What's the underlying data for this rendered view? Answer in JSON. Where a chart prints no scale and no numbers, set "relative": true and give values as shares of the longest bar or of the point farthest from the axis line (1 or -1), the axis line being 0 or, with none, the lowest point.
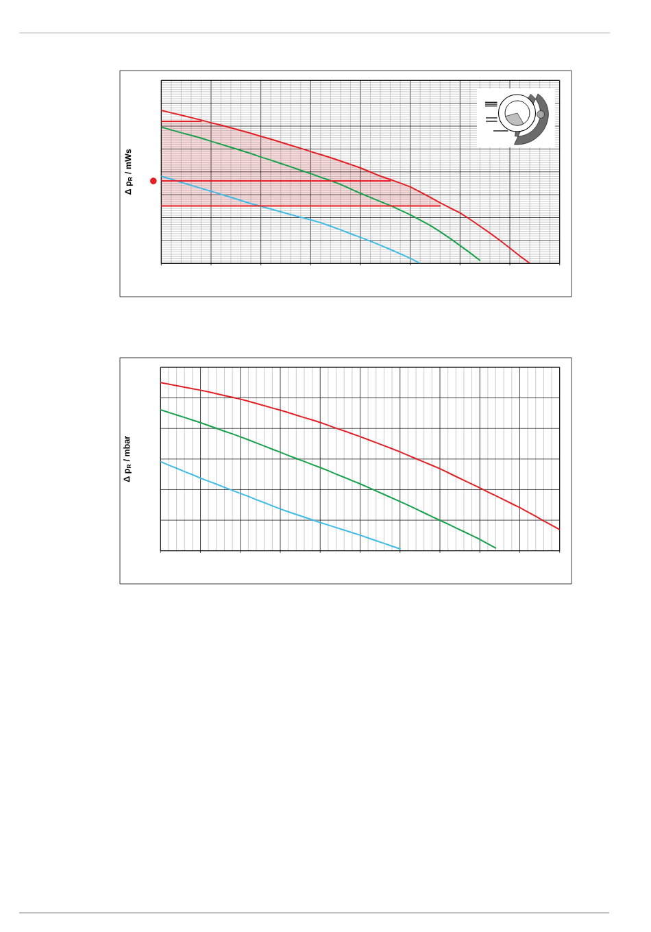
{
  "chart_data": [
    {
      "type": "line",
      "ylabel": "Δ p$_{R}$ / mWs",
      "relative": true,
      "grid": true,
      "categories": [
        null,
        null,
        null,
        null,
        null,
        null,
        null,
        null,
        null,
        null,
        null,
        null,
        null,
        null,
        null,
        null,
        null,
        null,
        null,
        null,
        null,
        null,
        null,
        null,
        null,
        null,
        null,
        null,
        null,
        null,
        null,
        null,
        null,
        null,
        null,
        null,
        null,
        null
      ],
      "series": [
        {
          "color": "#e31e24",
          "values": [
            1.0,
            0.984,
            0.969,
            0.953,
            0.937,
            0.919,
            0.904,
            0.886,
            0.868,
            0.85,
            0.83,
            0.812,
            0.792,
            0.772,
            0.752,
            0.731,
            0.711,
            0.691,
            0.669,
            0.647,
            0.624,
            0.597,
            0.57,
            0.548,
            0.525,
            0.5,
            0.467,
            0.432,
            0.396,
            0.362,
            0.33,
            0.288,
            0.243,
            0.198,
            0.15,
            0.1,
            0.048,
            0
          ]
        },
        {
          "color": "#16a04a",
          "values": [
            0.891,
            0.872,
            0.854,
            0.837,
            0.819,
            0.798,
            0.778,
            0.758,
            0.738,
            0.718,
            0.695,
            0.675,
            0.653,
            0.631,
            0.608,
            0.587,
            0.563,
            0.541,
            0.516,
            0.487,
            0.458,
            0.431,
            0.404,
            0.378,
            0.348,
            0.318,
            0.283,
            0.248,
            0.207,
            0.163,
            0.116,
            0.069,
            0.019,
            null,
            null,
            null,
            null,
            null
          ]
        },
        {
          "color": "#3dbbe6",
          "values": [
            0.569,
            0.55,
            0.53,
            0.51,
            0.49,
            0.472,
            0.451,
            0.431,
            0.411,
            0.391,
            0.373,
            0.355,
            0.337,
            0.319,
            0.301,
            0.285,
            0.266,
            0.243,
            0.219,
            0.194,
            0.17,
            0.145,
            0.118,
            0.091,
            0.062,
            0.033,
            0,
            null,
            null,
            null,
            null,
            null,
            null,
            null,
            null,
            null,
            null,
            null
          ]
        },
        {
          "type": "line",
          "color": "#e31e24",
          "values": [
            0.928,
            0.928,
            0.928,
            0.928,
            0.928,
            null,
            null,
            null,
            null,
            null,
            null,
            null,
            null,
            null,
            null,
            null,
            null,
            null,
            null,
            null,
            null,
            null,
            null,
            null,
            null,
            null,
            null,
            null,
            null,
            null,
            null,
            null,
            null,
            null,
            null,
            null,
            null,
            null
          ]
        },
        {
          "type": "line",
          "color": "#e31e24",
          "values": [
            0.539,
            0.539,
            0.539,
            0.539,
            0.539,
            0.539,
            0.539,
            0.539,
            0.539,
            0.539,
            0.539,
            0.539,
            0.539,
            0.539,
            0.539,
            0.539,
            0.539,
            0.539,
            0.539,
            0.539,
            0.539,
            0.539,
            0.539,
            0.539,
            null,
            null,
            null,
            null,
            null,
            null,
            null,
            null,
            null,
            null,
            null,
            null,
            null,
            null
          ]
        },
        {
          "type": "line",
          "color": "#e31e24",
          "values": [
            0.375,
            0.375,
            0.375,
            0.375,
            0.375,
            0.375,
            0.375,
            0.375,
            0.375,
            0.375,
            0.375,
            0.375,
            0.375,
            0.375,
            0.375,
            0.375,
            0.375,
            0.375,
            0.375,
            0.375,
            0.375,
            0.375,
            0.375,
            0.375,
            0.375,
            0.375,
            0.375,
            0.375,
            0.375,
            null,
            null,
            null,
            null,
            null,
            null,
            null,
            null,
            null
          ]
        }
      ]
    },
    {
      "type": "line",
      "ylabel": "Δ p$_{R}$ / mbar",
      "relative": true,
      "grid": true,
      "categories": [
        null,
        null,
        null,
        null,
        null,
        null,
        null,
        null,
        null,
        null,
        null,
        null,
        null,
        null,
        null,
        null,
        null,
        null,
        null,
        null,
        null,
        null,
        null,
        null,
        null,
        null,
        null,
        null,
        null,
        null,
        null,
        null,
        null,
        null,
        null,
        null,
        null,
        null,
        null,
        null,
        null,
        null,
        null,
        null,
        null,
        null,
        null,
        null,
        null,
        null,
        null
      ],
      "series": [
        {
          "color": "#e31e24",
          "values": [
            1.0,
            0.991,
            0.982,
            0.973,
            0.964,
            0.955,
            0.945,
            0.934,
            0.923,
            0.913,
            0.902,
            0.889,
            0.876,
            0.863,
            0.849,
            0.836,
            0.822,
            0.807,
            0.792,
            0.778,
            0.763,
            0.746,
            0.729,
            0.713,
            0.696,
            0.679,
            0.661,
            0.643,
            0.625,
            0.607,
            0.588,
            0.568,
            0.548,
            0.528,
            0.508,
            0.488,
            0.465,
            0.442,
            0.419,
            0.397,
            0.374,
            0.35,
            0.327,
            0.304,
            0.28,
            0.257,
            0.231,
            0.205,
            0.178,
            0.152,
            0.126
          ]
        },
        {
          "color": "#16a04a",
          "values": [
            0.838,
            0.823,
            0.808,
            0.793,
            0.777,
            0.762,
            0.745,
            0.728,
            0.711,
            0.695,
            0.678,
            0.66,
            0.641,
            0.623,
            0.604,
            0.586,
            0.567,
            0.549,
            0.531,
            0.513,
            0.495,
            0.476,
            0.456,
            0.437,
            0.417,
            0.398,
            0.377,
            0.356,
            0.335,
            0.314,
            0.293,
            0.271,
            0.249,
            0.226,
            0.203,
            0.181,
            0.159,
            0.136,
            0.114,
            0.091,
            0.068,
            0.042,
            0.016,
            null,
            null,
            null,
            null,
            null,
            null,
            null,
            null
          ]
        },
        {
          "color": "#3dbbe6",
          "values": [
            0.53,
            0.51,
            0.491,
            0.471,
            0.452,
            0.432,
            0.414,
            0.396,
            0.377,
            0.359,
            0.341,
            0.323,
            0.304,
            0.286,
            0.267,
            0.249,
            0.232,
            0.216,
            0.2,
            0.184,
            0.168,
            0.153,
            0.138,
            0.123,
            0.108,
            0.093,
            0.076,
            0.06,
            0.044,
            0.027,
            0.011,
            null,
            null,
            null,
            null,
            null,
            null,
            null,
            null,
            null,
            null,
            null,
            null,
            null,
            null,
            null,
            null,
            null,
            null,
            null,
            null
          ]
        }
      ]
    }
  ]
}
